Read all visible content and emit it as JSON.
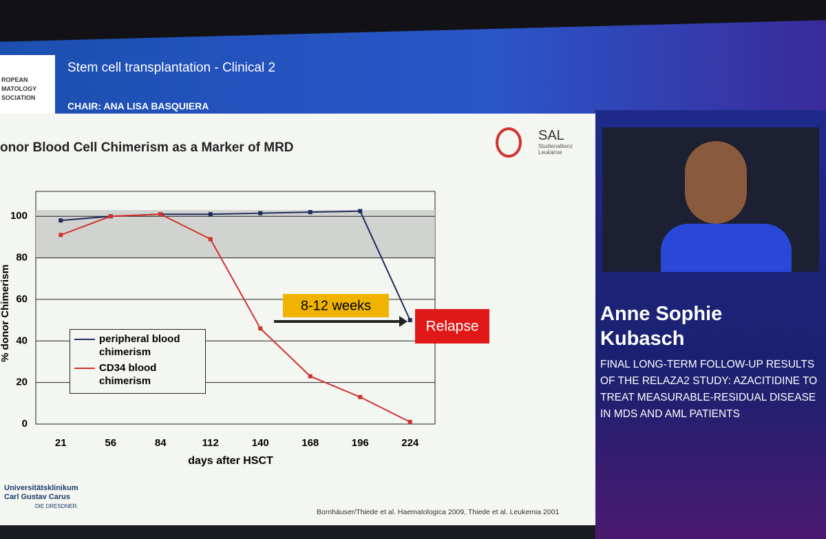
{
  "header": {
    "logo_lines": [
      "ROPEAN",
      "MATOLOGY",
      "SOCIATION"
    ],
    "session": "Stem cell transplantation - Clinical 2",
    "chair": "CHAIR: ANA LISA BASQUIERA"
  },
  "slide": {
    "logo": "SAL",
    "logo_sub": [
      "Studienallianz",
      "Leukämie"
    ],
    "institution": [
      "Universitätsklinikum",
      "Carl Gustav Carus",
      "DIE DRESDNER."
    ],
    "citation": "Bornhäuser/Thiede et al. Haematologica 2009, Thiede et al. Leukemia 2001"
  },
  "speaker": {
    "name": [
      "Anne Sophie",
      "Kubasch"
    ],
    "talk": "FINAL LONG-TERM FOLLOW-UP RESULTS OF THE RELAZA2 STUDY: AZACITIDINE TO TREAT MEASURABLE-RESIDUAL DISEASE IN MDS AND AML PATIENTS"
  },
  "chart_data": {
    "type": "line",
    "title": "onor Blood Cell Chimerism as a Marker of MRD",
    "x_label": "days after HSCT",
    "y_label": "% donor Chimerism",
    "categories": [
      "21",
      "56",
      "84",
      "112",
      "140",
      "168",
      "196",
      "224"
    ],
    "series": [
      {
        "name": "peripheral blood chimerism",
        "color": "#1f2a5c",
        "values": [
          98,
          100,
          101,
          101,
          101.5,
          102,
          102.5,
          50
        ]
      },
      {
        "name": "CD34 blood chimerism",
        "color": "#d0312d",
        "values": [
          91,
          100,
          101,
          89,
          46,
          23,
          13,
          1
        ]
      }
    ],
    "ylim": [
      0,
      112
    ],
    "yticks": [
      0,
      20,
      40,
      60,
      80,
      100
    ],
    "grid": true,
    "reference_band": [
      80,
      103
    ],
    "annotations": [
      "8-12 weeks",
      "Relapse"
    ]
  }
}
